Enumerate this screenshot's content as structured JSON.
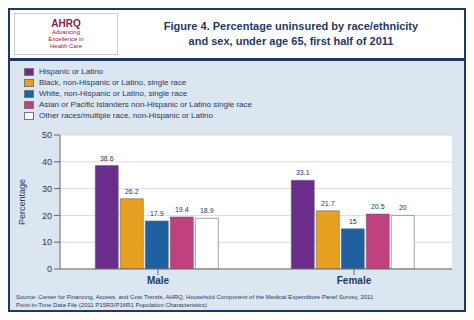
{
  "chart_data": {
    "type": "bar",
    "title": "Figure 4. Percentage uninsured by race/ethnicity\nand sex, under age 65, first half of 2011",
    "ylabel": "Percentage",
    "categories": [
      "Male",
      "Female"
    ],
    "series": [
      {
        "name": "Hispanic or Latino",
        "color": "#6B2D8B",
        "values": [
          38.6,
          33.1
        ]
      },
      {
        "name": "Black, non-Hispanic or Latino, single race",
        "color": "#E8A020",
        "values": [
          26.2,
          21.7
        ]
      },
      {
        "name": "White, non-Hispanic or Latino, single race",
        "color": "#2060A0",
        "values": [
          17.9,
          15.0
        ]
      },
      {
        "name": "Asian or Pacific Islanders non-Hispanic or Latino single race",
        "color": "#C04080",
        "values": [
          19.4,
          20.5
        ]
      },
      {
        "name": "Other races/multiple race, non-Hispanic or Latino",
        "color": "#FFFFFF",
        "values": [
          18.9,
          20.0
        ]
      }
    ],
    "ylim": [
      0,
      50
    ],
    "yticks": [
      0,
      10,
      20,
      30,
      40,
      50
    ],
    "grid": true,
    "data_labels": true,
    "legend": "upper left",
    "annotations": [
      "AHRQ",
      "Advancing\nExcellence in\nHealth Care",
      "Source: Center for Financing, Access, and Cost Trends, AHRQ, Household Component of the Medical Expenditure Panel Survey,  2011\nPoint-in-Time Data File (2011 P15R3/P16R1 Population Characteristics)"
    ]
  }
}
